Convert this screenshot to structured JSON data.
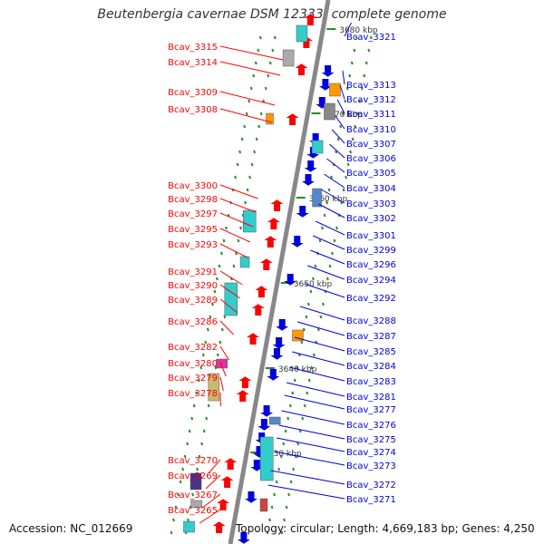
{
  "title": "Beutenbergia cavernae DSM 12333, complete genome",
  "footer": {
    "accession": "Accession: NC_012669",
    "topology": "Topology: circular; Length: 4,669,183 bp; Genes: 4,250"
  },
  "colors": {
    "left_genes": "#ff0000",
    "right_genes": "#0000dd",
    "backbone": "#888888",
    "ticks": "#2a8a2a"
  },
  "kbp_labels": [
    "3680 kbp",
    "3670 kbp",
    "3660 kbp",
    "3650 kbp",
    "3640 kbp",
    "3630 kbp"
  ],
  "left_genes": [
    "Bcav_3315",
    "Bcav_3314",
    "Bcav_3309",
    "Bcav_3308",
    "Bcav_3300",
    "Bcav_3298",
    "Bcav_3297",
    "Bcav_3295",
    "Bcav_3293",
    "Bcav_3291",
    "Bcav_3290",
    "Bcav_3289",
    "Bcav_3286",
    "Bcav_3282",
    "Bcav_3280",
    "Bcav_3279",
    "Bcav_3278",
    "Bcav_3270",
    "Bcav_3269",
    "Bcav_3267",
    "Bcav_3265"
  ],
  "right_genes": [
    "Bcav_3321",
    "Bcav_3313",
    "Bcav_3312",
    "Bcav_3311",
    "Bcav_3310",
    "Bcav_3307",
    "Bcav_3306",
    "Bcav_3305",
    "Bcav_3304",
    "Bcav_3303",
    "Bcav_3302",
    "Bcav_3301",
    "Bcav_3299",
    "Bcav_3296",
    "Bcav_3294",
    "Bcav_3292",
    "Bcav_3288",
    "Bcav_3287",
    "Bcav_3285",
    "Bcav_3284",
    "Bcav_3283",
    "Bcav_3281",
    "Bcav_3277",
    "Bcav_3276",
    "Bcav_3275",
    "Bcav_3274",
    "Bcav_3273",
    "Bcav_3272",
    "Bcav_3271"
  ]
}
